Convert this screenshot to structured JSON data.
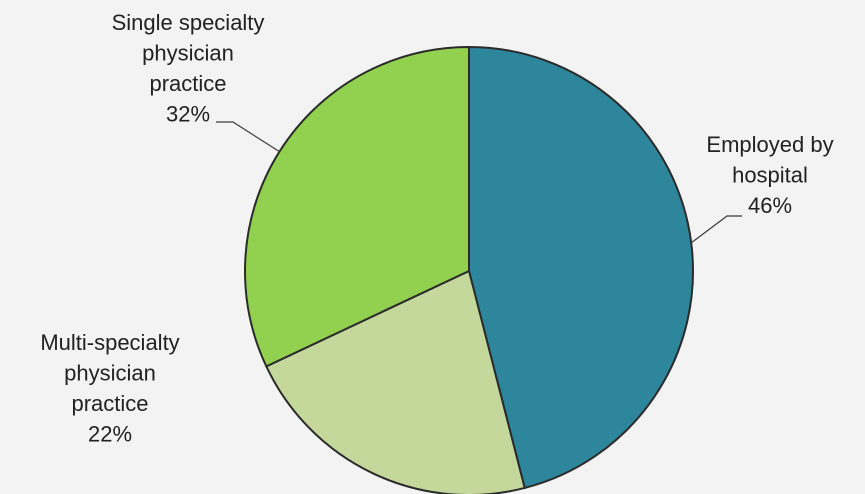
{
  "chart_data": {
    "type": "pie",
    "title": "",
    "start": "12 o'clock",
    "direction": "clockwise",
    "slices": [
      {
        "label": "Employed by hospital",
        "label_lines": [
          "Employed by",
          "hospital",
          "46%"
        ],
        "value": 46,
        "value_label": "46%",
        "color": "#2e869c"
      },
      {
        "label": "Multi-specialty physician practice",
        "label_lines": [
          "Multi-specialty",
          "physician",
          "practice",
          "22%"
        ],
        "value": 22,
        "value_label": "22%",
        "color": "#c4d89c"
      },
      {
        "label": "Single specialty physician practice",
        "label_lines": [
          "Single specialty",
          "physician",
          "practice",
          "32%"
        ],
        "value": 32,
        "value_label": "32%",
        "color": "#92d050"
      }
    ]
  }
}
